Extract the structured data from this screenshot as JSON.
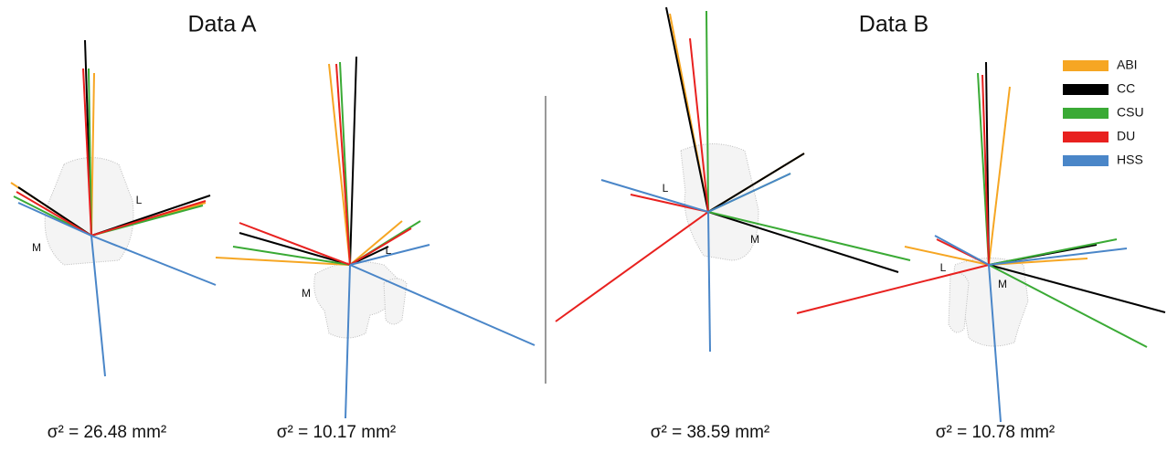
{
  "titles": [
    "Data A",
    "Data B"
  ],
  "panels": [
    {
      "caption": "σ² = 26.48 mm²",
      "lateral": "L",
      "medial": "M"
    },
    {
      "caption": "σ² = 10.17 mm²",
      "lateral": "L",
      "medial": "M"
    },
    {
      "caption": "σ² = 38.59 mm²",
      "lateral": "L",
      "medial": "M"
    },
    {
      "caption": "σ² = 10.78 mm²",
      "lateral": "L",
      "medial": "M"
    }
  ],
  "legend": [
    {
      "label": "ABI",
      "color": "#f6a623"
    },
    {
      "label": "CC",
      "color": "#000000"
    },
    {
      "label": "CSU",
      "color": "#3aaa35"
    },
    {
      "label": "DU",
      "color": "#e8211f"
    },
    {
      "label": "HSS",
      "color": "#4a86c8"
    }
  ]
}
